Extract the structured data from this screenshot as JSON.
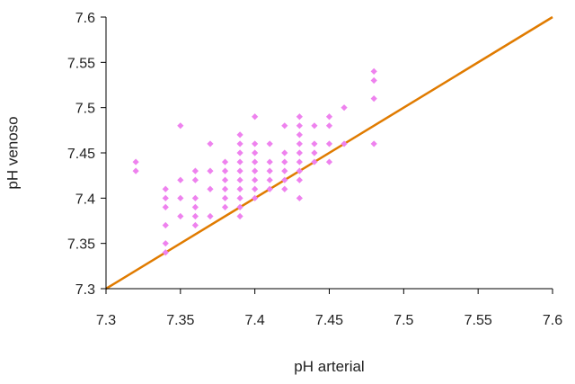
{
  "chart_data": {
    "type": "scatter",
    "xlabel": "pH arterial",
    "ylabel": "pH venoso",
    "xlim": [
      7.3,
      7.6
    ],
    "ylim": [
      7.3,
      7.6
    ],
    "x_ticks": [
      "7.3",
      "7.35",
      "7.4",
      "7.45",
      "7.5",
      "7.55",
      "7.6"
    ],
    "y_ticks": [
      "7.3",
      "7.35",
      "7.4",
      "7.45",
      "7.5",
      "7.55",
      "7.6"
    ],
    "grid": false,
    "legend": "none",
    "marker_color": "#ee82ee",
    "line_color": "#e07b00",
    "identity_line": [
      [
        7.3,
        7.3
      ],
      [
        7.6,
        7.6
      ]
    ],
    "points": [
      [
        7.32,
        7.44
      ],
      [
        7.32,
        7.43
      ],
      [
        7.34,
        7.41
      ],
      [
        7.34,
        7.4
      ],
      [
        7.34,
        7.39
      ],
      [
        7.34,
        7.37
      ],
      [
        7.34,
        7.35
      ],
      [
        7.34,
        7.34
      ],
      [
        7.35,
        7.48
      ],
      [
        7.35,
        7.42
      ],
      [
        7.35,
        7.4
      ],
      [
        7.35,
        7.38
      ],
      [
        7.36,
        7.43
      ],
      [
        7.36,
        7.42
      ],
      [
        7.36,
        7.4
      ],
      [
        7.36,
        7.39
      ],
      [
        7.36,
        7.38
      ],
      [
        7.36,
        7.37
      ],
      [
        7.37,
        7.46
      ],
      [
        7.37,
        7.43
      ],
      [
        7.37,
        7.41
      ],
      [
        7.37,
        7.38
      ],
      [
        7.38,
        7.44
      ],
      [
        7.38,
        7.43
      ],
      [
        7.38,
        7.42
      ],
      [
        7.38,
        7.41
      ],
      [
        7.38,
        7.4
      ],
      [
        7.38,
        7.39
      ],
      [
        7.39,
        7.47
      ],
      [
        7.39,
        7.46
      ],
      [
        7.39,
        7.45
      ],
      [
        7.39,
        7.44
      ],
      [
        7.39,
        7.43
      ],
      [
        7.39,
        7.42
      ],
      [
        7.39,
        7.41
      ],
      [
        7.39,
        7.4
      ],
      [
        7.39,
        7.39
      ],
      [
        7.39,
        7.38
      ],
      [
        7.4,
        7.49
      ],
      [
        7.4,
        7.46
      ],
      [
        7.4,
        7.45
      ],
      [
        7.4,
        7.44
      ],
      [
        7.4,
        7.43
      ],
      [
        7.4,
        7.42
      ],
      [
        7.4,
        7.41
      ],
      [
        7.4,
        7.4
      ],
      [
        7.41,
        7.46
      ],
      [
        7.41,
        7.44
      ],
      [
        7.41,
        7.43
      ],
      [
        7.41,
        7.42
      ],
      [
        7.41,
        7.41
      ],
      [
        7.42,
        7.48
      ],
      [
        7.42,
        7.45
      ],
      [
        7.42,
        7.44
      ],
      [
        7.42,
        7.43
      ],
      [
        7.42,
        7.42
      ],
      [
        7.42,
        7.41
      ],
      [
        7.43,
        7.49
      ],
      [
        7.43,
        7.48
      ],
      [
        7.43,
        7.47
      ],
      [
        7.43,
        7.46
      ],
      [
        7.43,
        7.45
      ],
      [
        7.43,
        7.44
      ],
      [
        7.43,
        7.43
      ],
      [
        7.43,
        7.42
      ],
      [
        7.43,
        7.4
      ],
      [
        7.44,
        7.48
      ],
      [
        7.44,
        7.46
      ],
      [
        7.44,
        7.45
      ],
      [
        7.44,
        7.44
      ],
      [
        7.45,
        7.49
      ],
      [
        7.45,
        7.48
      ],
      [
        7.45,
        7.46
      ],
      [
        7.45,
        7.44
      ],
      [
        7.46,
        7.5
      ],
      [
        7.46,
        7.46
      ],
      [
        7.48,
        7.54
      ],
      [
        7.48,
        7.53
      ],
      [
        7.48,
        7.51
      ],
      [
        7.48,
        7.46
      ]
    ]
  }
}
